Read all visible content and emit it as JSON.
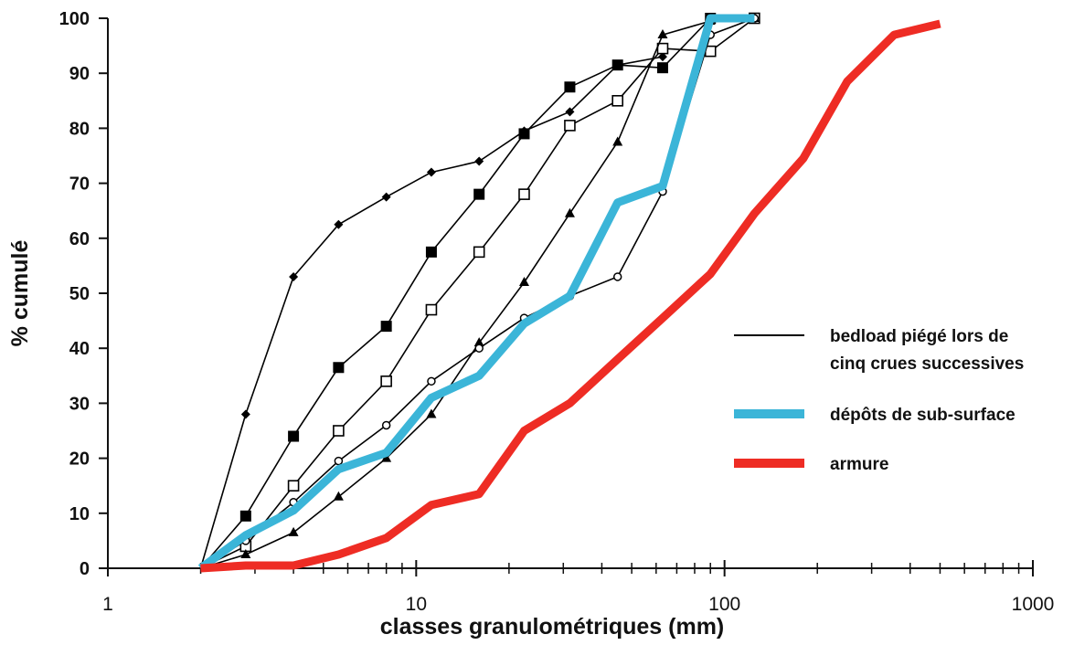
{
  "chart_data": {
    "type": "line",
    "title": "",
    "xlabel": "classes granulométriques (mm)",
    "ylabel": "% cumulé",
    "xscale": "log",
    "xlim": [
      1,
      1000
    ],
    "ylim": [
      0,
      100
    ],
    "x_ticks": [
      "1",
      "10",
      "100",
      "1000"
    ],
    "y_ticks": [
      "0",
      "10",
      "20",
      "30",
      "40",
      "50",
      "60",
      "70",
      "80",
      "90",
      "100"
    ],
    "grid": false,
    "legend_position": "right",
    "legend": [
      {
        "label_lines": [
          "bedload piégé lors de",
          "cinq crues successives"
        ],
        "color": "#000000",
        "style": "thin"
      },
      {
        "label_lines": [
          "dépôts de sub-surface"
        ],
        "color": "#3bb5d8",
        "style": "thick"
      },
      {
        "label_lines": [
          "armure"
        ],
        "color": "#ee2c24",
        "style": "thick"
      }
    ],
    "series": [
      {
        "marker": "diamond",
        "color": "#000000",
        "x": [
          2,
          2.8,
          4,
          5.6,
          8,
          11.2,
          16,
          22.4,
          31.5,
          45,
          63
        ],
        "y": [
          0,
          28,
          53,
          62.5,
          67.5,
          72,
          74,
          79.5,
          83,
          91.5,
          93
        ]
      },
      {
        "marker": "filled-square",
        "color": "#000000",
        "x": [
          2,
          2.8,
          4,
          5.6,
          8,
          11.2,
          16,
          22.4,
          31.5,
          45,
          63,
          90,
          125
        ],
        "y": [
          0,
          9.5,
          24,
          36.5,
          44,
          57.5,
          68,
          79,
          87.5,
          91.5,
          91,
          100,
          100
        ]
      },
      {
        "marker": "open-square",
        "color": "#000000",
        "x": [
          2,
          2.8,
          4,
          5.6,
          8,
          11.2,
          16,
          22.4,
          31.5,
          45,
          63,
          90,
          125
        ],
        "y": [
          0,
          4,
          15,
          25,
          34,
          47,
          57.5,
          68,
          80.5,
          85,
          94.5,
          94,
          100
        ]
      },
      {
        "marker": "triangle",
        "color": "#000000",
        "x": [
          2,
          2.8,
          4,
          5.6,
          8,
          11.2,
          16,
          22.4,
          31.5,
          45,
          63,
          90,
          125
        ],
        "y": [
          0,
          2.5,
          6.5,
          13,
          20,
          28,
          41,
          52,
          64.5,
          77.5,
          97,
          99.5,
          100
        ]
      },
      {
        "marker": "open-circle",
        "color": "#000000",
        "x": [
          2,
          2.8,
          4,
          5.6,
          8,
          11.2,
          16,
          22.4,
          31.5,
          45,
          63,
          90,
          125
        ],
        "y": [
          0,
          5,
          12,
          19.5,
          26,
          34,
          40,
          45.5,
          49.5,
          53,
          68.5,
          97,
          100
        ]
      },
      {
        "marker": "none",
        "color": "#3bb5d8",
        "x": [
          2,
          2.8,
          4,
          5.6,
          8,
          11.2,
          16,
          22.4,
          31.5,
          45,
          63,
          90,
          125
        ],
        "y": [
          0,
          6,
          10.5,
          18,
          21,
          31,
          35,
          44.5,
          49.5,
          66.5,
          69.5,
          100,
          100
        ]
      },
      {
        "marker": "none",
        "color": "#ee2c24",
        "x": [
          2,
          2.8,
          4,
          5.6,
          8,
          11.2,
          16,
          22.4,
          31.5,
          45,
          63,
          90,
          125,
          180,
          250,
          355,
          500
        ],
        "y": [
          0,
          0.5,
          0.5,
          2.5,
          5.5,
          11.5,
          13.5,
          25,
          30,
          38,
          45.5,
          53.5,
          64.5,
          74.5,
          88.5,
          97,
          99
        ]
      }
    ]
  }
}
